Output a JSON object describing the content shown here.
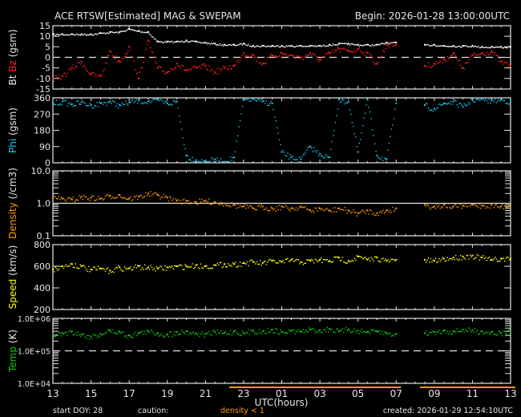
{
  "header": {
    "title": "ACE RTSW[Estimated] MAG & SWEPAM",
    "begin": "Begin: 2026-01-28 13:00:00UTC"
  },
  "footer": {
    "start_doy": "start DOY:  28",
    "caution": "caution:",
    "caution_density": "density < 1",
    "xlabel": "UTC(hours)",
    "created": "created: 2026-01-29 12:54:10UTC"
  },
  "colors": {
    "bt": "#ffffff",
    "bz": "#ff2020",
    "phi": "#1ec8f0",
    "density": "#ff9a00",
    "speed": "#ffff00",
    "temp": "#10c810",
    "axis": "#e6e6e6",
    "caution": "#ff9a00"
  },
  "chart_data": [
    {
      "type": "scatter",
      "ylabel_parts": [
        "Bt",
        "Bz",
        "(gsm)"
      ],
      "ylim": [
        -15,
        15
      ],
      "yticks": [
        "15",
        "10",
        "5",
        "0",
        "-5",
        "-10",
        "-15"
      ],
      "reference_line": {
        "value": 0,
        "style": "dashed"
      },
      "series": [
        {
          "name": "Bt",
          "color_key": "bt",
          "values": [
            11,
            11,
            11,
            11,
            11,
            11.5,
            12,
            12,
            13.5,
            12.5,
            12,
            7.5,
            7.5,
            7.5,
            8,
            7.5,
            7,
            6.5,
            6,
            6,
            6.5,
            5.5,
            5.5,
            5.5,
            5.5,
            5.5,
            5.5,
            5.5,
            5.5,
            6,
            6.5,
            6.5,
            6,
            6,
            6,
            7,
            7,
            null,
            null,
            6,
            6,
            5.5,
            5.5,
            5.5,
            5.5,
            5,
            5,
            5,
            5
          ]
        },
        {
          "name": "Bz",
          "color_key": "bz",
          "values": [
            -10,
            -9,
            -5,
            -2,
            -8,
            -9,
            3,
            -2,
            5,
            -10,
            8,
            -5,
            -7,
            -3,
            -6,
            -5,
            -4,
            -7,
            -5,
            -4,
            2,
            1,
            -3,
            1,
            2,
            1,
            0,
            2,
            -1,
            2,
            4,
            3,
            4,
            2,
            -3,
            6,
            6,
            null,
            null,
            -4,
            -3,
            -1,
            2,
            -5,
            1,
            2,
            3,
            -2,
            -4
          ]
        }
      ]
    },
    {
      "type": "scatter",
      "ylabel": "Phi (gsm)",
      "ylim": [
        0,
        360
      ],
      "yticks": [
        "360",
        "270",
        "180",
        "90",
        "0"
      ],
      "series": [
        {
          "name": "Phi",
          "color_key": "phi",
          "values": [
            330,
            340,
            325,
            335,
            320,
            330,
            340,
            320,
            335,
            345,
            340,
            350,
            330,
            340,
            40,
            15,
            10,
            20,
            5,
            30,
            350,
            355,
            340,
            330,
            60,
            30,
            20,
            90,
            50,
            30,
            350,
            340,
            60,
            350,
            40,
            20,
            330,
            null,
            null,
            320,
            300,
            330,
            340,
            310,
            350,
            355,
            345,
            350,
            340
          ]
        }
      ]
    },
    {
      "type": "scatter",
      "ylabel": "Density (/cm3)",
      "yscale": "log",
      "ylim": [
        0.1,
        10
      ],
      "yticks": [
        "10.0",
        "1.0",
        "0.1"
      ],
      "reference_line": {
        "value": 1,
        "style": "solid"
      },
      "series": [
        {
          "name": "Density",
          "color_key": "density",
          "values": [
            1.5,
            1.4,
            1.3,
            1.6,
            1.5,
            1.4,
            1.7,
            1.8,
            1.4,
            1.6,
            2.0,
            1.8,
            1.5,
            1.2,
            1.2,
            1.1,
            1.2,
            1.1,
            1.0,
            0.9,
            0.8,
            0.7,
            0.8,
            0.7,
            0.8,
            0.7,
            0.8,
            0.6,
            0.7,
            0.6,
            0.7,
            0.6,
            0.5,
            0.6,
            0.5,
            0.6,
            0.7,
            null,
            null,
            0.9,
            0.8,
            0.9,
            0.8,
            0.85,
            0.9,
            0.85,
            0.9,
            0.8,
            0.9
          ]
        }
      ]
    },
    {
      "type": "scatter",
      "ylabel": "Speed (km/s)",
      "ylim": [
        200,
        800
      ],
      "yticks": [
        "800",
        "600",
        "400",
        "200"
      ],
      "series": [
        {
          "name": "Speed",
          "color_key": "speed",
          "values": [
            570,
            600,
            620,
            600,
            570,
            580,
            560,
            590,
            580,
            600,
            590,
            580,
            590,
            600,
            600,
            610,
            600,
            610,
            620,
            620,
            630,
            640,
            630,
            650,
            640,
            660,
            640,
            650,
            660,
            650,
            680,
            650,
            690,
            660,
            680,
            650,
            660,
            null,
            null,
            660,
            650,
            670,
            680,
            690,
            700,
            680,
            660,
            670,
            670
          ]
        }
      ]
    },
    {
      "type": "scatter",
      "ylabel": "Temp (K)",
      "yscale": "log",
      "ylim": [
        10000,
        1000000
      ],
      "yticks": [
        "1.0E+06",
        "1.0E+05",
        "1.0E+04"
      ],
      "reference_line": {
        "value": 100000,
        "style": "dashed"
      },
      "series": [
        {
          "name": "Temp",
          "color_key": "temp",
          "values": [
            300000,
            350000,
            400000,
            320000,
            280000,
            330000,
            420000,
            380000,
            300000,
            360000,
            400000,
            350000,
            320000,
            380000,
            400000,
            350000,
            330000,
            380000,
            360000,
            400000,
            350000,
            420000,
            400000,
            450000,
            380000,
            420000,
            400000,
            450000,
            430000,
            480000,
            400000,
            460000,
            420000,
            380000,
            400000,
            350000,
            330000,
            null,
            null,
            350000,
            380000,
            420000,
            400000,
            450000,
            430000,
            400000,
            380000,
            350000,
            400000
          ]
        }
      ]
    }
  ],
  "x_axis": {
    "start_hour": 13,
    "step_hours": 0.5,
    "span_hours": 24,
    "tick_labels": [
      "13",
      "15",
      "17",
      "19",
      "21",
      "23",
      "01",
      "03",
      "05",
      "07",
      "09",
      "11",
      "13"
    ]
  }
}
